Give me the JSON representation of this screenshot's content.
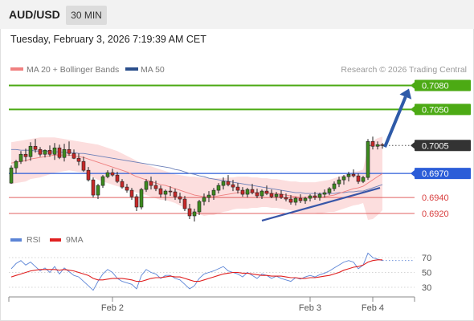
{
  "header": {
    "symbol": "AUD/USD",
    "timeframe": "30 MIN",
    "datetime": "Tuesday, February 3, 2026 7:19:39 AM CET"
  },
  "legend": {
    "ma20_label": "MA 20 + Bollinger Bands",
    "ma20_color": "#f08080",
    "ma50_label": "MA 50",
    "ma50_color": "#2b4f8c"
  },
  "copyright": "Research © 2026 Trading Central",
  "rsi_legend": {
    "rsi_label": "RSI",
    "rsi_color": "#5b84d6",
    "ma_label": "9MA",
    "ma_color": "#e02020"
  },
  "chart_data": {
    "type": "candlestick",
    "symbol": "AUD/USD",
    "timeframe": "30 MIN",
    "price_levels": [
      {
        "value": "0.7080",
        "kind": "resistance",
        "color": "#4caa14"
      },
      {
        "value": "0.7050",
        "kind": "resistance",
        "color": "#4caa14"
      },
      {
        "value": "0.7005",
        "kind": "last",
        "color": "#333333"
      },
      {
        "value": "0.6970",
        "kind": "pivot",
        "color": "#2b5dd8"
      },
      {
        "value": "0.6940",
        "kind": "support",
        "color": "#e06060"
      },
      {
        "value": "0.6920",
        "kind": "support",
        "color": "#e06060"
      }
    ],
    "x_tick_labels": [
      "Feb 2",
      "Feb 3",
      "Feb 4"
    ],
    "candles": [
      [
        0.6958,
        0.698,
        0.6957,
        0.6977
      ],
      [
        0.6977,
        0.6987,
        0.697,
        0.6985
      ],
      [
        0.6985,
        0.6998,
        0.6982,
        0.6994
      ],
      [
        0.6994,
        0.7001,
        0.6985,
        0.6991
      ],
      [
        0.6991,
        0.7009,
        0.6986,
        0.7004
      ],
      [
        0.7004,
        0.7013,
        0.6996,
        0.7
      ],
      [
        0.7,
        0.7003,
        0.6991,
        0.6994
      ],
      [
        0.6994,
        0.7,
        0.699,
        0.6999
      ],
      [
        0.6999,
        0.7005,
        0.6991,
        0.6994
      ],
      [
        0.6994,
        0.7008,
        0.6987,
        0.7002
      ],
      [
        0.7002,
        0.7006,
        0.6988,
        0.699
      ],
      [
        0.699,
        0.7007,
        0.6985,
        0.7
      ],
      [
        0.7,
        0.701,
        0.6992,
        0.6995
      ],
      [
        0.6995,
        0.7,
        0.6988,
        0.6989
      ],
      [
        0.6989,
        0.6995,
        0.698,
        0.6985
      ],
      [
        0.6985,
        0.6991,
        0.6972,
        0.6974
      ],
      [
        0.6974,
        0.6978,
        0.696,
        0.6962
      ],
      [
        0.6962,
        0.6965,
        0.694,
        0.6943
      ],
      [
        0.6943,
        0.6957,
        0.6938,
        0.6955
      ],
      [
        0.6955,
        0.6968,
        0.6952,
        0.6966
      ],
      [
        0.6966,
        0.6974,
        0.6964,
        0.6971
      ],
      [
        0.6971,
        0.6976,
        0.6966,
        0.6968
      ],
      [
        0.6968,
        0.6972,
        0.6958,
        0.696
      ],
      [
        0.696,
        0.6963,
        0.6951,
        0.6953
      ],
      [
        0.6953,
        0.6957,
        0.6946,
        0.6949
      ],
      [
        0.6949,
        0.6952,
        0.6937,
        0.6941
      ],
      [
        0.6941,
        0.6944,
        0.6923,
        0.6928
      ],
      [
        0.6928,
        0.6952,
        0.6925,
        0.695
      ],
      [
        0.695,
        0.6963,
        0.6947,
        0.696
      ],
      [
        0.696,
        0.6966,
        0.695,
        0.6955
      ],
      [
        0.6955,
        0.6961,
        0.6948,
        0.6951
      ],
      [
        0.6951,
        0.6955,
        0.694,
        0.6944
      ],
      [
        0.6944,
        0.695,
        0.6936,
        0.6948
      ],
      [
        0.6948,
        0.6954,
        0.6942,
        0.6947
      ],
      [
        0.6947,
        0.6951,
        0.6937,
        0.6941
      ],
      [
        0.6941,
        0.6946,
        0.6933,
        0.6938
      ],
      [
        0.6938,
        0.6942,
        0.6923,
        0.6926
      ],
      [
        0.6926,
        0.6932,
        0.6913,
        0.6917
      ],
      [
        0.6917,
        0.6926,
        0.691,
        0.6922
      ],
      [
        0.6922,
        0.6937,
        0.6918,
        0.6935
      ],
      [
        0.6935,
        0.6945,
        0.693,
        0.694
      ],
      [
        0.694,
        0.6948,
        0.6934,
        0.6943
      ],
      [
        0.6943,
        0.6952,
        0.6937,
        0.6949
      ],
      [
        0.6949,
        0.6958,
        0.6945,
        0.6955
      ],
      [
        0.6955,
        0.6965,
        0.695,
        0.696
      ],
      [
        0.696,
        0.6968,
        0.6954,
        0.6956
      ],
      [
        0.6956,
        0.6962,
        0.6948,
        0.6953
      ],
      [
        0.6953,
        0.6958,
        0.6945,
        0.6949
      ],
      [
        0.6949,
        0.6953,
        0.6941,
        0.6944
      ],
      [
        0.6944,
        0.6952,
        0.694,
        0.695
      ],
      [
        0.695,
        0.6957,
        0.6944,
        0.6946
      ],
      [
        0.6946,
        0.6951,
        0.6939,
        0.6942
      ],
      [
        0.6942,
        0.695,
        0.6938,
        0.6948
      ],
      [
        0.6948,
        0.6955,
        0.6943,
        0.6945
      ],
      [
        0.6945,
        0.695,
        0.6939,
        0.6941
      ],
      [
        0.6941,
        0.6947,
        0.6936,
        0.6944
      ],
      [
        0.6944,
        0.6949,
        0.6938,
        0.694
      ],
      [
        0.694,
        0.6945,
        0.6935,
        0.6938
      ],
      [
        0.6938,
        0.6943,
        0.6931,
        0.6934
      ],
      [
        0.6934,
        0.6941,
        0.693,
        0.6939
      ],
      [
        0.6939,
        0.6944,
        0.6933,
        0.6936
      ],
      [
        0.6936,
        0.6941,
        0.6932,
        0.6939
      ],
      [
        0.6939,
        0.6944,
        0.6935,
        0.6942
      ],
      [
        0.6942,
        0.6947,
        0.6937,
        0.694
      ],
      [
        0.694,
        0.6946,
        0.6936,
        0.6944
      ],
      [
        0.6944,
        0.695,
        0.694,
        0.6946
      ],
      [
        0.6946,
        0.6953,
        0.6943,
        0.6951
      ],
      [
        0.6951,
        0.696,
        0.6948,
        0.6957
      ],
      [
        0.6957,
        0.6966,
        0.6953,
        0.6962
      ],
      [
        0.6962,
        0.6968,
        0.6956,
        0.6966
      ],
      [
        0.6966,
        0.6972,
        0.696,
        0.6969
      ],
      [
        0.6969,
        0.6975,
        0.6965,
        0.6967
      ],
      [
        0.6967,
        0.697,
        0.6957,
        0.696
      ],
      [
        0.696,
        0.6967,
        0.6958,
        0.6965
      ],
      [
        0.6965,
        0.7013,
        0.6962,
        0.701
      ],
      [
        0.701,
        0.7016,
        0.7,
        0.7004
      ],
      [
        0.7004,
        0.701,
        0.7,
        0.7006
      ],
      [
        0.7006,
        0.7008,
        0.7001,
        0.7005
      ]
    ],
    "ma20": [
      0.6983,
      0.6984,
      0.6985,
      0.6986,
      0.6988,
      0.6989,
      0.699,
      0.6991,
      0.6992,
      0.6993,
      0.6993,
      0.6993,
      0.6993,
      0.6992,
      0.6991,
      0.699,
      0.6988,
      0.6986,
      0.6984,
      0.6982,
      0.698,
      0.6978,
      0.6976,
      0.6974,
      0.6972,
      0.6969,
      0.6966,
      0.6964,
      0.6962,
      0.696,
      0.6958,
      0.6956,
      0.6955,
      0.6953,
      0.6951,
      0.6949,
      0.6947,
      0.6945,
      0.6943,
      0.6942,
      0.6941,
      0.6941,
      0.6941,
      0.6942,
      0.6943,
      0.6944,
      0.6945,
      0.6946,
      0.6946,
      0.6946,
      0.6946,
      0.6946,
      0.6946,
      0.6946,
      0.6945,
      0.6945,
      0.6944,
      0.6943,
      0.6942,
      0.6941,
      0.694,
      0.694,
      0.694,
      0.694,
      0.694,
      0.6941,
      0.6942,
      0.6943,
      0.6945,
      0.6947,
      0.6949,
      0.6951,
      0.6952,
      0.6954,
      0.6958,
      0.6962,
      0.6966,
      0.697
    ],
    "ma50": [
      0.7,
      0.7,
      0.6999,
      0.6999,
      0.6999,
      0.6998,
      0.6998,
      0.6998,
      0.6997,
      0.6997,
      0.6997,
      0.6996,
      0.6996,
      0.6996,
      0.6995,
      0.6995,
      0.6994,
      0.6993,
      0.6992,
      0.6991,
      0.699,
      0.6989,
      0.6988,
      0.6987,
      0.6986,
      0.6985,
      0.6984,
      0.6983,
      0.6982,
      0.6981,
      0.698,
      0.6979,
      0.6978,
      0.6977,
      0.6975,
      0.6974,
      0.6972,
      0.697,
      0.6969,
      0.6967,
      0.6966,
      0.6964,
      0.6963,
      0.6962,
      0.6961,
      0.696,
      0.6959,
      0.6958,
      0.6957,
      0.6956,
      0.6955,
      0.6954,
      0.6953,
      0.6952,
      0.6951,
      0.695,
      0.6949,
      0.6948,
      0.6947,
      0.6946,
      0.6946,
      0.6945,
      0.6945,
      0.6945,
      0.6945,
      0.6945,
      0.6945,
      0.6945,
      0.6946,
      0.6946,
      0.6947,
      0.6947,
      0.6948,
      0.6948,
      0.695,
      0.6952,
      0.6954,
      0.6956
    ],
    "bb_upper": [
      0.7009,
      0.701,
      0.7011,
      0.7012,
      0.7013,
      0.7014,
      0.7015,
      0.7015,
      0.7015,
      0.7015,
      0.7014,
      0.7013,
      0.7012,
      0.7011,
      0.701,
      0.7009,
      0.7008,
      0.7007,
      0.7006,
      0.7004,
      0.7002,
      0.7,
      0.6998,
      0.6995,
      0.6992,
      0.6989,
      0.6986,
      0.6983,
      0.6981,
      0.6979,
      0.6977,
      0.6975,
      0.6973,
      0.6971,
      0.6969,
      0.6968,
      0.6967,
      0.6966,
      0.6966,
      0.6965,
      0.6965,
      0.6964,
      0.6964,
      0.6964,
      0.6964,
      0.6965,
      0.6965,
      0.6966,
      0.6966,
      0.6966,
      0.6965,
      0.6965,
      0.6964,
      0.6964,
      0.6963,
      0.6963,
      0.6962,
      0.6961,
      0.696,
      0.696,
      0.6959,
      0.6959,
      0.6959,
      0.6959,
      0.696,
      0.6961,
      0.6962,
      0.6964,
      0.6966,
      0.6968,
      0.697,
      0.6972,
      0.6973,
      0.6975,
      0.7004,
      0.7011,
      0.7014,
      0.7016
    ],
    "bb_lower": [
      0.6957,
      0.6958,
      0.6959,
      0.696,
      0.6963,
      0.6964,
      0.6965,
      0.6967,
      0.6969,
      0.6971,
      0.6972,
      0.6973,
      0.6974,
      0.6973,
      0.6972,
      0.6971,
      0.6968,
      0.6965,
      0.6962,
      0.696,
      0.6958,
      0.6956,
      0.6954,
      0.6953,
      0.6952,
      0.6949,
      0.6946,
      0.6945,
      0.6943,
      0.6941,
      0.6939,
      0.6937,
      0.6937,
      0.6935,
      0.6933,
      0.693,
      0.6927,
      0.6924,
      0.692,
      0.6919,
      0.6917,
      0.6918,
      0.6918,
      0.692,
      0.6922,
      0.6923,
      0.6925,
      0.6926,
      0.6926,
      0.6926,
      0.6927,
      0.6927,
      0.6928,
      0.6928,
      0.6927,
      0.6927,
      0.6926,
      0.6925,
      0.6924,
      0.6922,
      0.6921,
      0.6921,
      0.6921,
      0.6921,
      0.692,
      0.6921,
      0.6922,
      0.6922,
      0.6924,
      0.6926,
      0.6928,
      0.693,
      0.6931,
      0.6933,
      0.6912,
      0.6913,
      0.6918,
      0.6924
    ],
    "trendline": {
      "from": [
        54,
        0.6915
      ],
      "to": [
        77,
        0.6952
      ]
    },
    "forecast_arrow": {
      "from": [
        77,
        0.7003
      ],
      "to": [
        86,
        0.7076
      ]
    },
    "rsi": {
      "ticks": [
        "70",
        "50",
        "30"
      ],
      "ylim": [
        20,
        80
      ],
      "rsi": [
        55,
        62,
        66,
        60,
        64,
        58,
        52,
        56,
        50,
        58,
        48,
        56,
        51,
        46,
        44,
        38,
        32,
        26,
        38,
        48,
        54,
        50,
        42,
        38,
        36,
        34,
        28,
        46,
        54,
        50,
        48,
        42,
        46,
        46,
        42,
        40,
        34,
        28,
        32,
        42,
        48,
        50,
        52,
        55,
        58,
        52,
        50,
        48,
        44,
        50,
        46,
        42,
        48,
        46,
        42,
        45,
        42,
        40,
        38,
        43,
        41,
        44,
        46,
        44,
        47,
        49,
        52,
        56,
        60,
        64,
        66,
        64,
        55,
        60,
        76,
        70,
        68,
        66
      ],
      "ma9": [
        44,
        46,
        48,
        50,
        52,
        53,
        54,
        54,
        54,
        54,
        53,
        54,
        53,
        52,
        50,
        48,
        46,
        42,
        40,
        40,
        41,
        42,
        42,
        42,
        41,
        40,
        38,
        38,
        40,
        42,
        43,
        43,
        44,
        45,
        44,
        44,
        42,
        40,
        38,
        38,
        40,
        42,
        44,
        46,
        48,
        49,
        50,
        50,
        49,
        49,
        48,
        47,
        46,
        46,
        45,
        45,
        45,
        44,
        43,
        43,
        42,
        42,
        43,
        43,
        44,
        45,
        46,
        48,
        50,
        53,
        55,
        57,
        58,
        60,
        64,
        66,
        67,
        67
      ]
    }
  }
}
